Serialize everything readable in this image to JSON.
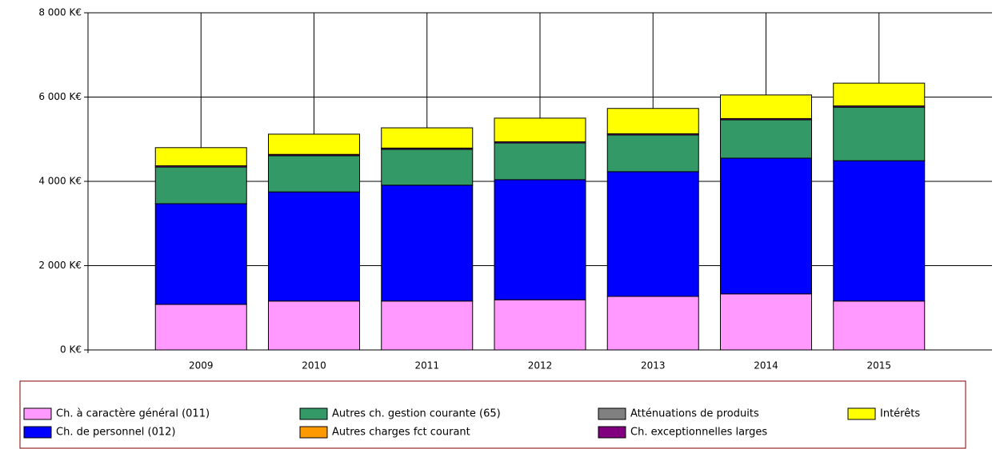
{
  "chart_data": {
    "type": "stacked_bar",
    "categories": [
      "2009",
      "2010",
      "2011",
      "2012",
      "2013",
      "2014",
      "2015"
    ],
    "series": [
      {
        "name": "Ch. à caractère général (011)",
        "color": "#ff99ff",
        "values": [
          1080,
          1160,
          1160,
          1190,
          1270,
          1330,
          1160
        ]
      },
      {
        "name": "Ch. de personnel (012)",
        "color": "#0000ff",
        "values": [
          2390,
          2590,
          2750,
          2850,
          2960,
          3220,
          3330
        ]
      },
      {
        "name": "Atténuations de produits",
        "color": "#808080",
        "values": [
          0,
          0,
          0,
          0,
          0,
          0,
          0
        ]
      },
      {
        "name": "Autres charges fct courant",
        "color": "#ff9900",
        "values": [
          0,
          0,
          0,
          0,
          0,
          0,
          0
        ]
      },
      {
        "name": "Autres ch. gestion courante (65)",
        "color": "#339966",
        "values": [
          870,
          860,
          850,
          870,
          870,
          910,
          1270
        ]
      },
      {
        "name": "Ch. exceptionnelles larges",
        "color": "#800080",
        "values": [
          30,
          30,
          30,
          30,
          30,
          30,
          30
        ]
      },
      {
        "name": "Intérêts",
        "color": "#ffff00",
        "values": [
          430,
          480,
          480,
          560,
          600,
          560,
          540
        ]
      }
    ],
    "legend_order": [
      0,
      4,
      2,
      6,
      1,
      3,
      5
    ],
    "ylim": [
      0,
      8000
    ],
    "yticks": [
      {
        "value": 0,
        "label": "0 K€"
      },
      {
        "value": 2000,
        "label": "2 000 K€"
      },
      {
        "value": 4000,
        "label": "4 000 K€"
      },
      {
        "value": 6000,
        "label": "6 000 K€"
      },
      {
        "value": 8000,
        "label": "8 000 K€"
      }
    ],
    "grid": true
  }
}
